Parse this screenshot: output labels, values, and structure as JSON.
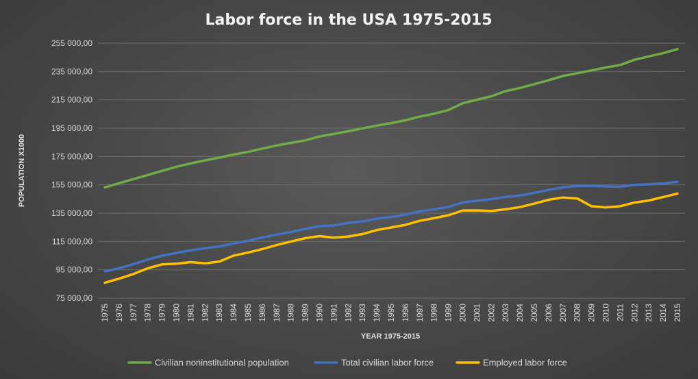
{
  "chart_data": {
    "type": "line",
    "title": "Labor force in the USA 1975-2015",
    "xlabel": "YEAR 1975-2015",
    "ylabel": "POPULATION X1000",
    "ylim": [
      75000,
      255000
    ],
    "yticks": [
      75000,
      95000,
      115000,
      135000,
      155000,
      175000,
      195000,
      215000,
      235000,
      255000
    ],
    "ytick_labels": [
      "75 000,00",
      "95 000,00",
      "115 000,00",
      "135 000,00",
      "155 000,00",
      "175 000,00",
      "195 000,00",
      "215 000,00",
      "235 000,00",
      "255 000,00"
    ],
    "grid": true,
    "legend_position": "bottom",
    "x": [
      "1975",
      "1976",
      "1977",
      "1978",
      "1979",
      "1980",
      "1981",
      "1982",
      "1983",
      "1984",
      "1985",
      "1986",
      "1987",
      "1988",
      "1989",
      "1990",
      "1991",
      "1992",
      "1993",
      "1994",
      "1995",
      "1996",
      "1997",
      "1998",
      "1999",
      "2000",
      "2001",
      "2002",
      "2003",
      "2004",
      "2005",
      "2006",
      "2007",
      "2008",
      "2009",
      "2010",
      "2011",
      "2012",
      "2013",
      "2014",
      "2015"
    ],
    "series": [
      {
        "name": "Civilian noninstitutional population",
        "color": "#70ad47",
        "values": [
          153153,
          156150,
          159033,
          161910,
          164863,
          167745,
          170130,
          172271,
          174215,
          176383,
          178206,
          180587,
          182753,
          184613,
          186393,
          189164,
          190925,
          192805,
          194838,
          196814,
          198584,
          200591,
          203133,
          205220,
          207753,
          212577,
          215092,
          217570,
          221168,
          223357,
          226082,
          228815,
          231867,
          233788,
          235801,
          237830,
          239618,
          243284,
          245679,
          247947,
          250801
        ]
      },
      {
        "name": "Total civilian labor force",
        "color": "#4472c4",
        "values": [
          93775,
          96158,
          99009,
          102251,
          104962,
          106940,
          108670,
          110204,
          111550,
          113544,
          115461,
          117834,
          119865,
          121669,
          123869,
          125840,
          126346,
          128105,
          129200,
          131056,
          132304,
          133943,
          136297,
          137673,
          139368,
          142583,
          143734,
          144863,
          146510,
          147401,
          149320,
          151428,
          153124,
          154287,
          154142,
          153889,
          153617,
          154975,
          155389,
          155922,
          157130
        ]
      },
      {
        "name": "Employed labor force",
        "color": "#ffc000",
        "values": [
          85846,
          88752,
          92017,
          96048,
          98824,
          99303,
          100397,
          99526,
          100834,
          105005,
          107150,
          109597,
          112440,
          114968,
          117342,
          118793,
          117718,
          118492,
          120259,
          123060,
          124900,
          126708,
          129558,
          131463,
          133488,
          136891,
          136933,
          136485,
          137736,
          139252,
          141730,
          144427,
          146047,
          145362,
          139877,
          139064,
          139869,
          142469,
          143929,
          146305,
          148834
        ]
      }
    ]
  }
}
